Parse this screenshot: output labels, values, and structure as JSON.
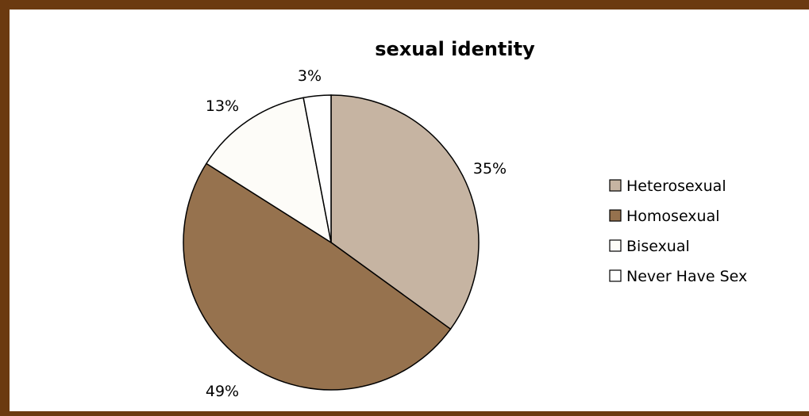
{
  "chart_data": {
    "type": "pie",
    "title": "sexual identity",
    "categories": [
      "Heterosexual",
      "Homosexual",
      "Bisexual",
      "Never Have Sex"
    ],
    "values": [
      35,
      49,
      13,
      3
    ],
    "value_labels": [
      "35%",
      "49%",
      "13%",
      "3%"
    ],
    "colors": [
      "#C6B4A2",
      "#96724E",
      "#FDFCF8",
      "#FFFFFF"
    ],
    "start_angle_deg": 0,
    "direction": "clockwise",
    "legend": "right",
    "grid": false
  },
  "colors": {
    "frame": "#6B3A10",
    "outline": "#000000",
    "background": "#FFFFFF"
  }
}
